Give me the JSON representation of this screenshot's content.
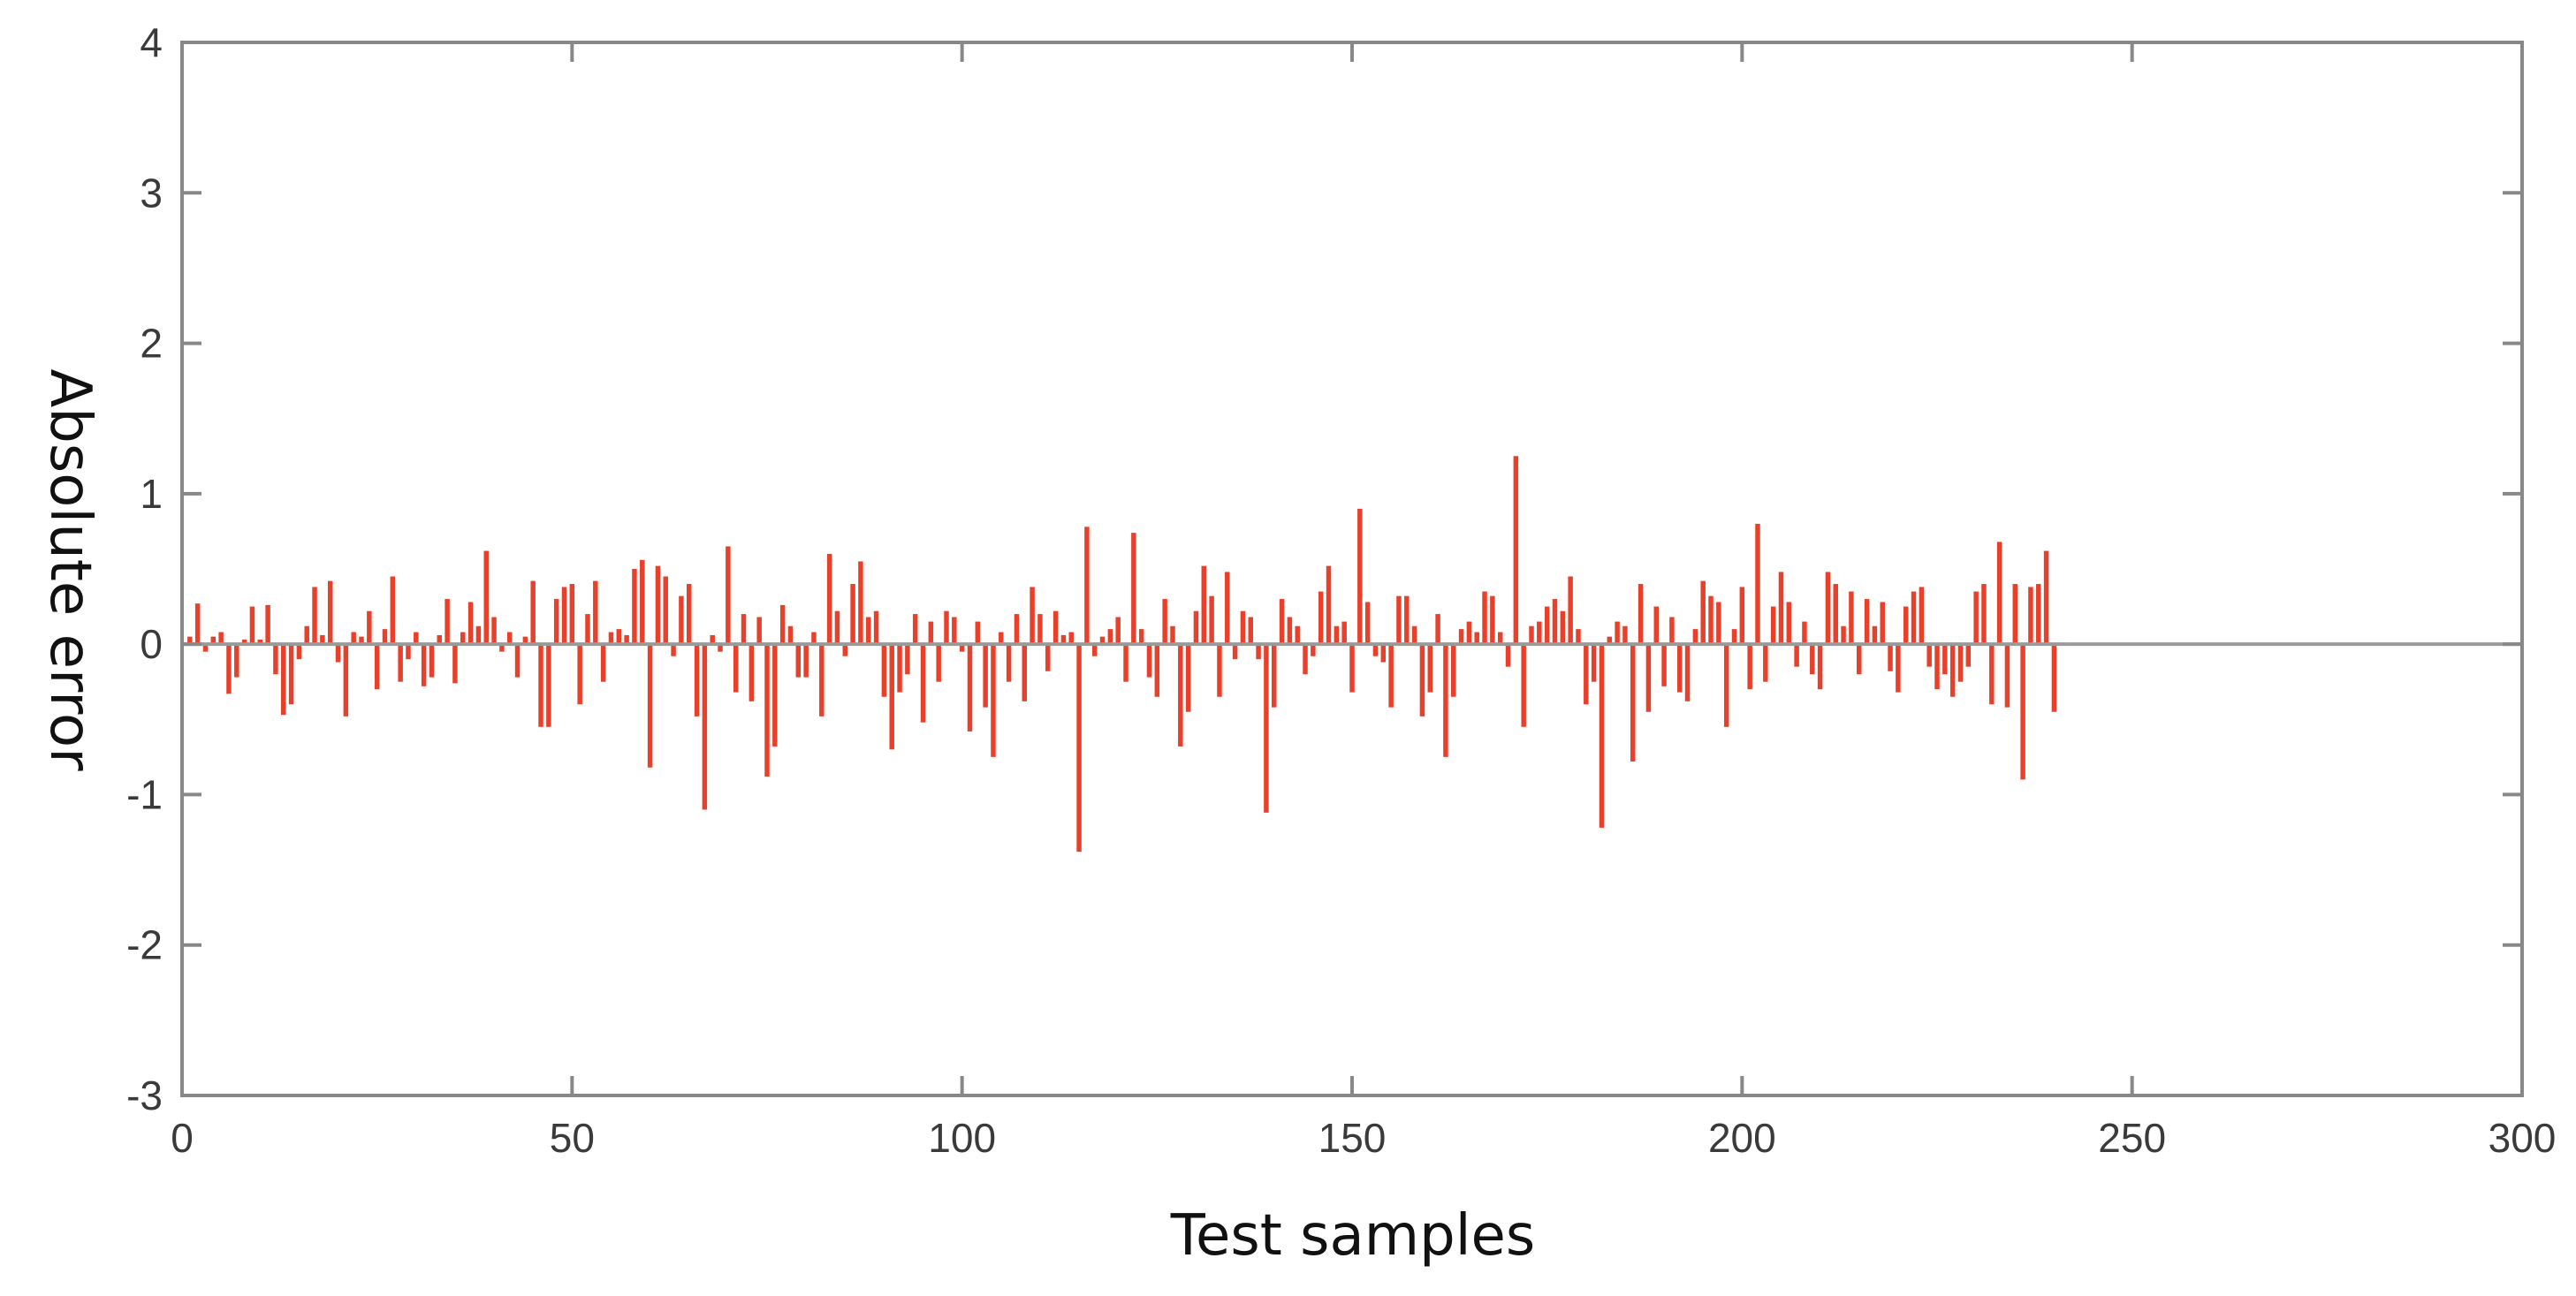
{
  "chart_data": {
    "type": "bar",
    "title": "",
    "xlabel": "Test samples",
    "ylabel": "Absolute error",
    "xlim": [
      0,
      300
    ],
    "ylim": [
      -3,
      4
    ],
    "xticks": [
      0,
      50,
      100,
      150,
      200,
      250,
      300
    ],
    "yticks": [
      -3,
      -2,
      -1,
      0,
      1,
      2,
      3,
      4
    ],
    "grid": false,
    "legend": "none",
    "colors": {
      "bar": "#e8402a",
      "axes": "#888888",
      "zero_line": "#9a9a9a"
    },
    "series": [
      {
        "x_start": 1,
        "x_step": 1,
        "values": [
          0.05,
          0.27,
          -0.05,
          0.05,
          0.08,
          -0.33,
          -0.22,
          0.03,
          0.25,
          0.03,
          0.26,
          -0.2,
          -0.47,
          -0.4,
          -0.1,
          0.12,
          0.38,
          0.06,
          0.42,
          -0.12,
          -0.48,
          0.08,
          0.05,
          0.22,
          -0.3,
          0.1,
          0.45,
          -0.25,
          -0.1,
          0.08,
          -0.28,
          -0.22,
          0.06,
          0.3,
          -0.26,
          0.08,
          0.28,
          0.12,
          0.62,
          0.18,
          -0.05,
          0.08,
          -0.22,
          0.05,
          0.42,
          -0.55,
          -0.55,
          0.3,
          0.38,
          0.4,
          -0.4,
          0.2,
          0.42,
          -0.25,
          0.08,
          0.1,
          0.06,
          0.5,
          0.56,
          -0.82,
          0.52,
          0.45,
          -0.08,
          0.32,
          0.4,
          -0.48,
          -1.1,
          0.06,
          -0.05,
          0.65,
          -0.32,
          0.2,
          -0.38,
          0.18,
          -0.88,
          -0.68,
          0.26,
          0.12,
          -0.22,
          -0.22,
          0.08,
          -0.48,
          0.6,
          0.22,
          -0.08,
          0.4,
          0.55,
          0.18,
          0.22,
          -0.35,
          -0.7,
          -0.32,
          -0.2,
          0.2,
          -0.52,
          0.15,
          -0.25,
          0.22,
          0.18,
          -0.05,
          -0.58,
          0.15,
          -0.42,
          -0.75,
          0.08,
          -0.25,
          0.2,
          -0.38,
          0.38,
          0.2,
          -0.18,
          0.22,
          0.06,
          0.08,
          -1.38,
          0.78,
          -0.08,
          0.05,
          0.1,
          0.18,
          -0.25,
          0.74,
          0.1,
          -0.22,
          -0.35,
          0.3,
          0.12,
          -0.68,
          -0.45,
          0.22,
          0.52,
          0.32,
          -0.35,
          0.48,
          -0.1,
          0.22,
          0.18,
          -0.1,
          -1.12,
          -0.42,
          0.3,
          0.18,
          0.12,
          -0.2,
          -0.08,
          0.35,
          0.52,
          0.12,
          0.15,
          -0.32,
          0.9,
          0.28,
          -0.08,
          -0.12,
          -0.42,
          0.32,
          0.32,
          0.12,
          -0.48,
          -0.32,
          0.2,
          -0.75,
          -0.35,
          0.1,
          0.15,
          0.08,
          0.35,
          0.32,
          0.08,
          -0.15,
          1.25,
          -0.55,
          0.12,
          0.15,
          0.25,
          0.3,
          0.22,
          0.45,
          0.1,
          -0.4,
          -0.25,
          -1.22,
          0.05,
          0.15,
          0.12,
          -0.78,
          0.4,
          -0.45,
          0.25,
          -0.28,
          0.18,
          -0.32,
          -0.38,
          0.1,
          0.42,
          0.32,
          0.28,
          -0.55,
          0.1,
          0.38,
          -0.3,
          0.8,
          -0.25,
          0.25,
          0.48,
          0.28,
          -0.15,
          0.15,
          -0.2,
          -0.3,
          0.48,
          0.4,
          0.12,
          0.35,
          -0.2,
          0.3,
          0.12,
          0.28,
          -0.18,
          -0.32,
          0.25,
          0.35,
          0.38,
          -0.15,
          -0.3,
          -0.2,
          -0.35,
          -0.25,
          -0.15,
          0.35,
          0.4,
          -0.4,
          0.68,
          -0.42,
          0.4,
          -0.9,
          0.38,
          0.4,
          0.62,
          -0.45
        ]
      }
    ]
  },
  "axes": {
    "x_tick_labels": [
      "0",
      "50",
      "100",
      "150",
      "200",
      "250",
      "300"
    ],
    "y_tick_labels": [
      "-3",
      "-2",
      "-1",
      "0",
      "1",
      "2",
      "3",
      "4"
    ]
  }
}
